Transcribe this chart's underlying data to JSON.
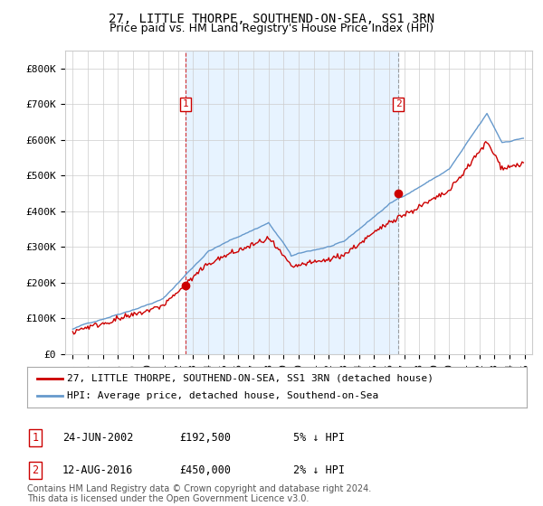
{
  "title": "27, LITTLE THORPE, SOUTHEND-ON-SEA, SS1 3RN",
  "subtitle": "Price paid vs. HM Land Registry's House Price Index (HPI)",
  "hpi_color": "#6699cc",
  "hpi_fill_color": "#ddeeff",
  "price_color": "#cc0000",
  "sale1_vline_color": "#cc0000",
  "sale2_vline_color": "#888888",
  "marker_color": "#cc0000",
  "background_color": "#ffffff",
  "grid_color": "#cccccc",
  "legend_label_price": "27, LITTLE THORPE, SOUTHEND-ON-SEA, SS1 3RN (detached house)",
  "legend_label_hpi": "HPI: Average price, detached house, Southend-on-Sea",
  "sale1_date": "24-JUN-2002",
  "sale1_price": "£192,500",
  "sale1_hpi": "5% ↓ HPI",
  "sale1_year": 2002.48,
  "sale1_value": 192500,
  "sale2_date": "12-AUG-2016",
  "sale2_price": "£450,000",
  "sale2_hpi": "2% ↓ HPI",
  "sale2_year": 2016.62,
  "sale2_value": 450000,
  "footer": "Contains HM Land Registry data © Crown copyright and database right 2024.\nThis data is licensed under the Open Government Licence v3.0.",
  "title_fontsize": 10,
  "subtitle_fontsize": 9,
  "tick_fontsize": 8,
  "legend_fontsize": 8,
  "footer_fontsize": 7,
  "annotation_fontsize": 8
}
